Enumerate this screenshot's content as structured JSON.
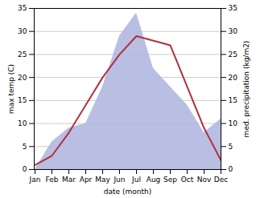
{
  "chart_data": {
    "type": "line",
    "categories": [
      "Jan",
      "Feb",
      "Mar",
      "Apr",
      "May",
      "Jun",
      "Jul",
      "Aug",
      "Sep",
      "Oct",
      "Nov",
      "Dec"
    ],
    "xlabel": "date (month)",
    "ylabel": "max temp (C)",
    "y2label": "med. precipitation (kg/m2)",
    "ylim": [
      0,
      35
    ],
    "yticks": [
      0,
      5,
      10,
      15,
      20,
      25,
      30,
      35
    ],
    "y2lim": [
      0,
      35
    ],
    "y2ticks": [
      0,
      5,
      10,
      15,
      20,
      25,
      30,
      35
    ],
    "grid": true,
    "series": [
      {
        "type": "area",
        "axis": "y2",
        "color": "#b0b8e0",
        "values": [
          0,
          6,
          9,
          10,
          18,
          29,
          34,
          22,
          18,
          14,
          8,
          11
        ]
      },
      {
        "type": "line",
        "color": "#b03040",
        "values": [
          1,
          3,
          8,
          14,
          20,
          25,
          29,
          28,
          27,
          18,
          9,
          2
        ]
      }
    ]
  }
}
